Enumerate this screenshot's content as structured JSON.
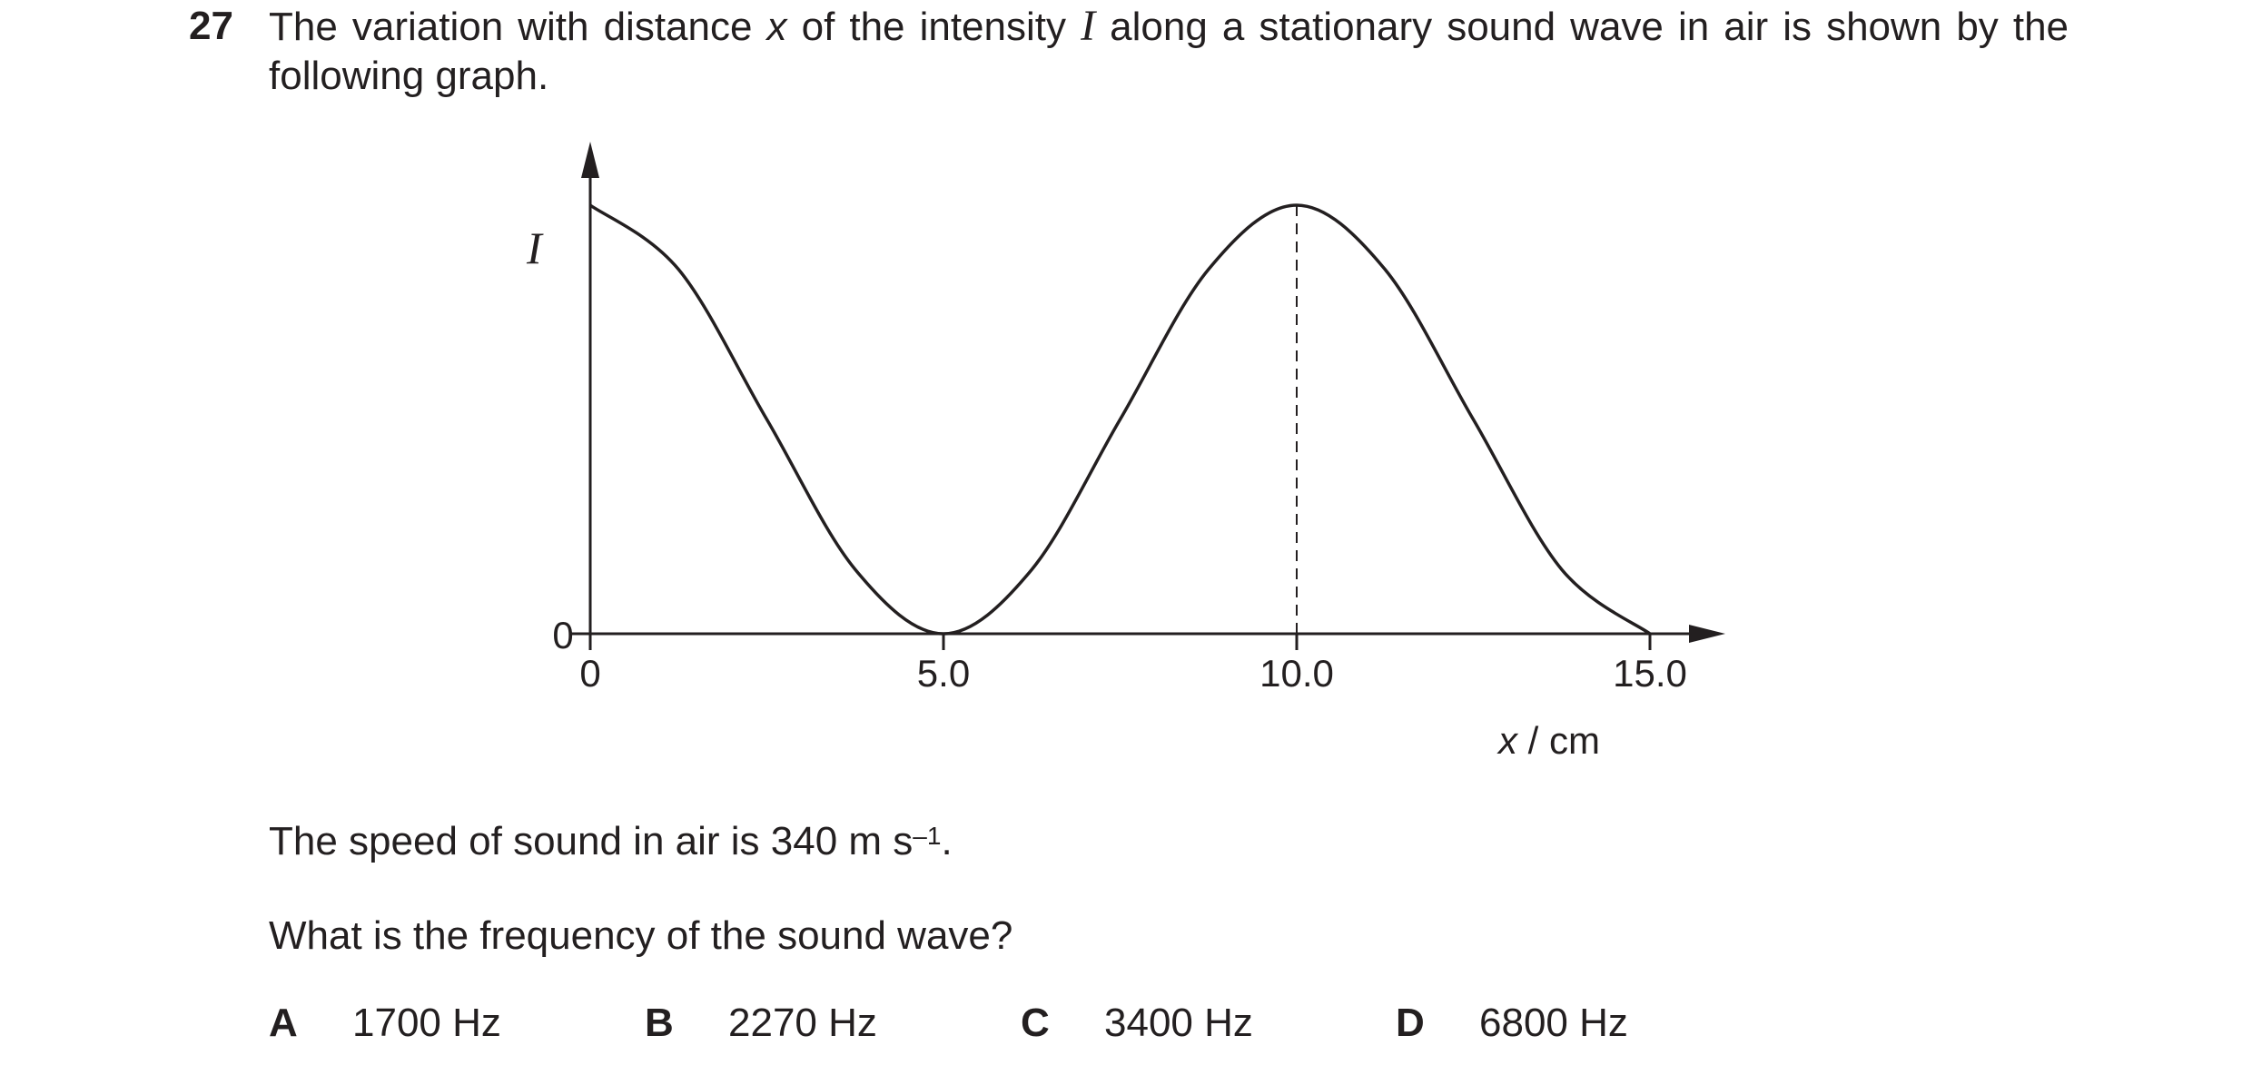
{
  "question": {
    "number": "27",
    "stem_part1": "The variation with distance ",
    "stem_var_x": "x",
    "stem_part2": " of the intensity ",
    "stem_var_i": "I",
    "stem_part3": " along a stationary sound wave in air is shown by the following graph.",
    "speed_text": "The speed of sound in air is 340 m s",
    "speed_sup": "–1",
    "speed_end": ".",
    "prompt": "What is the frequency of the sound wave?",
    "options": [
      {
        "letter": "A",
        "text": "1700 Hz"
      },
      {
        "letter": "B",
        "text": "2270 Hz"
      },
      {
        "letter": "C",
        "text": "3400 Hz"
      },
      {
        "letter": "D",
        "text": "6800 Hz"
      }
    ]
  },
  "chart_data": {
    "type": "line",
    "ylabel": "I",
    "xlabel_var": "x",
    "xlabel_unit": " / cm",
    "xlim": [
      0,
      15.0
    ],
    "x_ticks": [
      "0",
      "5.0",
      "10.0",
      "15.0"
    ],
    "y_ticks": [
      "0"
    ],
    "series": [
      {
        "x": [
          0,
          1.25,
          2.5,
          3.75,
          5.0,
          6.25,
          7.5,
          8.75,
          10.0,
          11.25,
          12.5,
          13.75,
          15.0
        ],
        "y": [
          1.0,
          0.85,
          0.5,
          0.15,
          0.0,
          0.15,
          0.5,
          0.85,
          1.0,
          0.85,
          0.5,
          0.15,
          0.0
        ]
      }
    ],
    "dashed_marker_x": 10.0,
    "grid": false
  }
}
